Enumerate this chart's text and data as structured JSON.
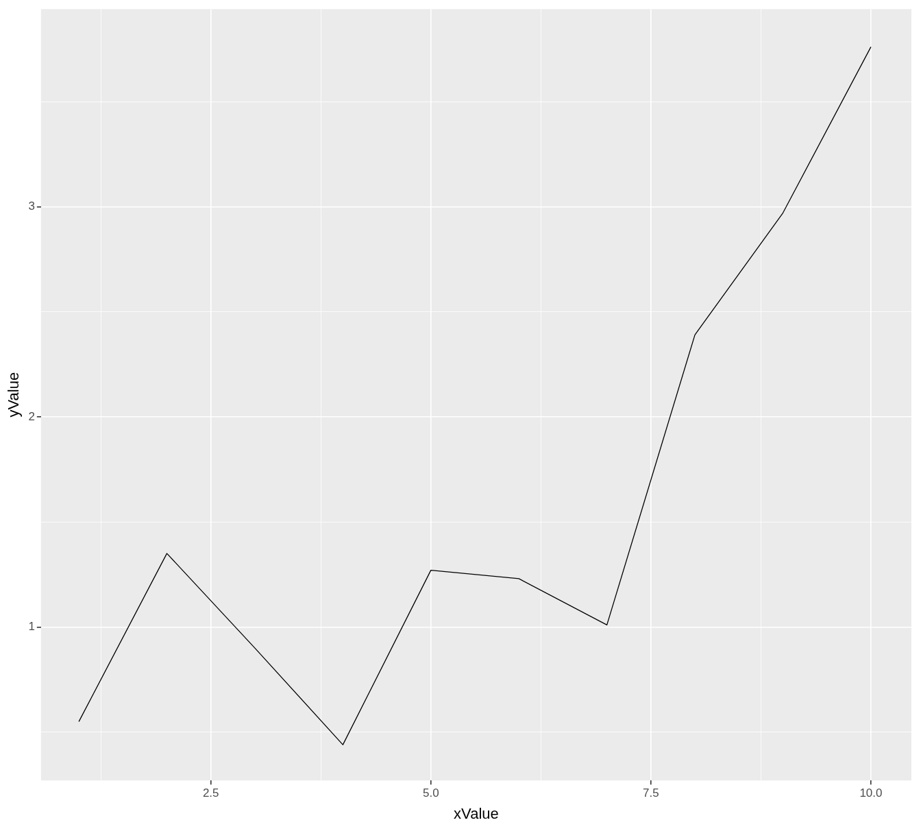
{
  "chart_data": {
    "type": "line",
    "xlabel": "xValue",
    "ylabel": "yValue",
    "x": [
      1,
      2,
      3,
      4,
      5,
      6,
      7,
      8,
      9,
      10
    ],
    "series": [
      {
        "color": "#000000",
        "values": [
          0.55,
          1.35,
          0.9,
          0.44,
          1.27,
          1.23,
          1.01,
          2.39,
          2.97,
          3.76
        ]
      }
    ],
    "xlim": [
      0.57,
      10.46
    ],
    "ylim": [
      0.27,
      3.94
    ],
    "xticks": [
      {
        "value": 1.25,
        "label": null
      },
      2.5,
      {
        "value": 3.75,
        "label": null
      },
      "5.0",
      {
        "value": 6.25,
        "label": null
      },
      7.5,
      {
        "value": 8.75,
        "label": null
      },
      "10.0"
    ],
    "yticks": [
      {
        "value": 0.5,
        "label": null
      },
      1,
      {
        "value": 1.5,
        "label": null
      },
      2,
      {
        "value": 2.5,
        "label": null
      },
      3,
      {
        "value": 3.5,
        "label": null
      }
    ],
    "grid": true,
    "legend": false,
    "marker": "none",
    "line_style": "solid"
  }
}
